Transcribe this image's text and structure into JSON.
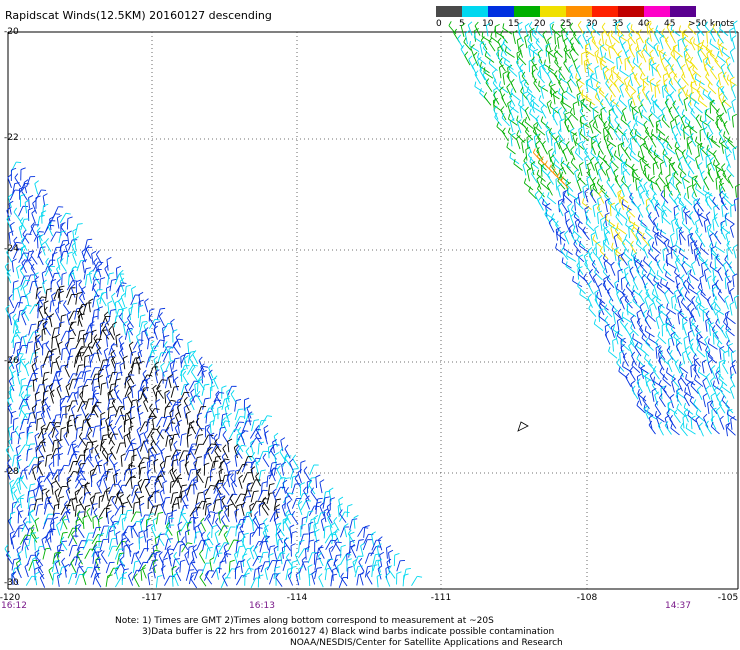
{
  "title": "Rapidscat Winds(12.5KM) 20160127 descending",
  "legend": {
    "labels": [
      "0",
      "5",
      "10",
      "15",
      "20",
      "25",
      "30",
      "35",
      "40",
      "45",
      ">50 knots"
    ],
    "colors": [
      "#4a4a4a",
      "#00d8f0",
      "#0030e0",
      "#00b000",
      "#f0e000",
      "#ff9000",
      "#ff2000",
      "#c00000",
      "#ff00c8",
      "#5a0090"
    ]
  },
  "map": {
    "lon_labels": [
      "-120",
      "-117",
      "-114",
      "-111",
      "-108",
      "-105"
    ],
    "lat_labels": [
      "-20",
      "-22",
      "-24",
      "-26",
      "-28",
      "-30"
    ],
    "time_labels": [
      "16:12",
      "16:13",
      "14:37"
    ]
  },
  "notes": {
    "line1": "Note: 1) Times are GMT 2)Times along bottom correspond to measurement at ~20S",
    "line2": "3)Data buffer is 22 hrs from 20160127 4) Black wind barbs indicate possible contamination",
    "line3": "NOAA/NESDIS/Center for Satellite Applications and Research"
  }
}
